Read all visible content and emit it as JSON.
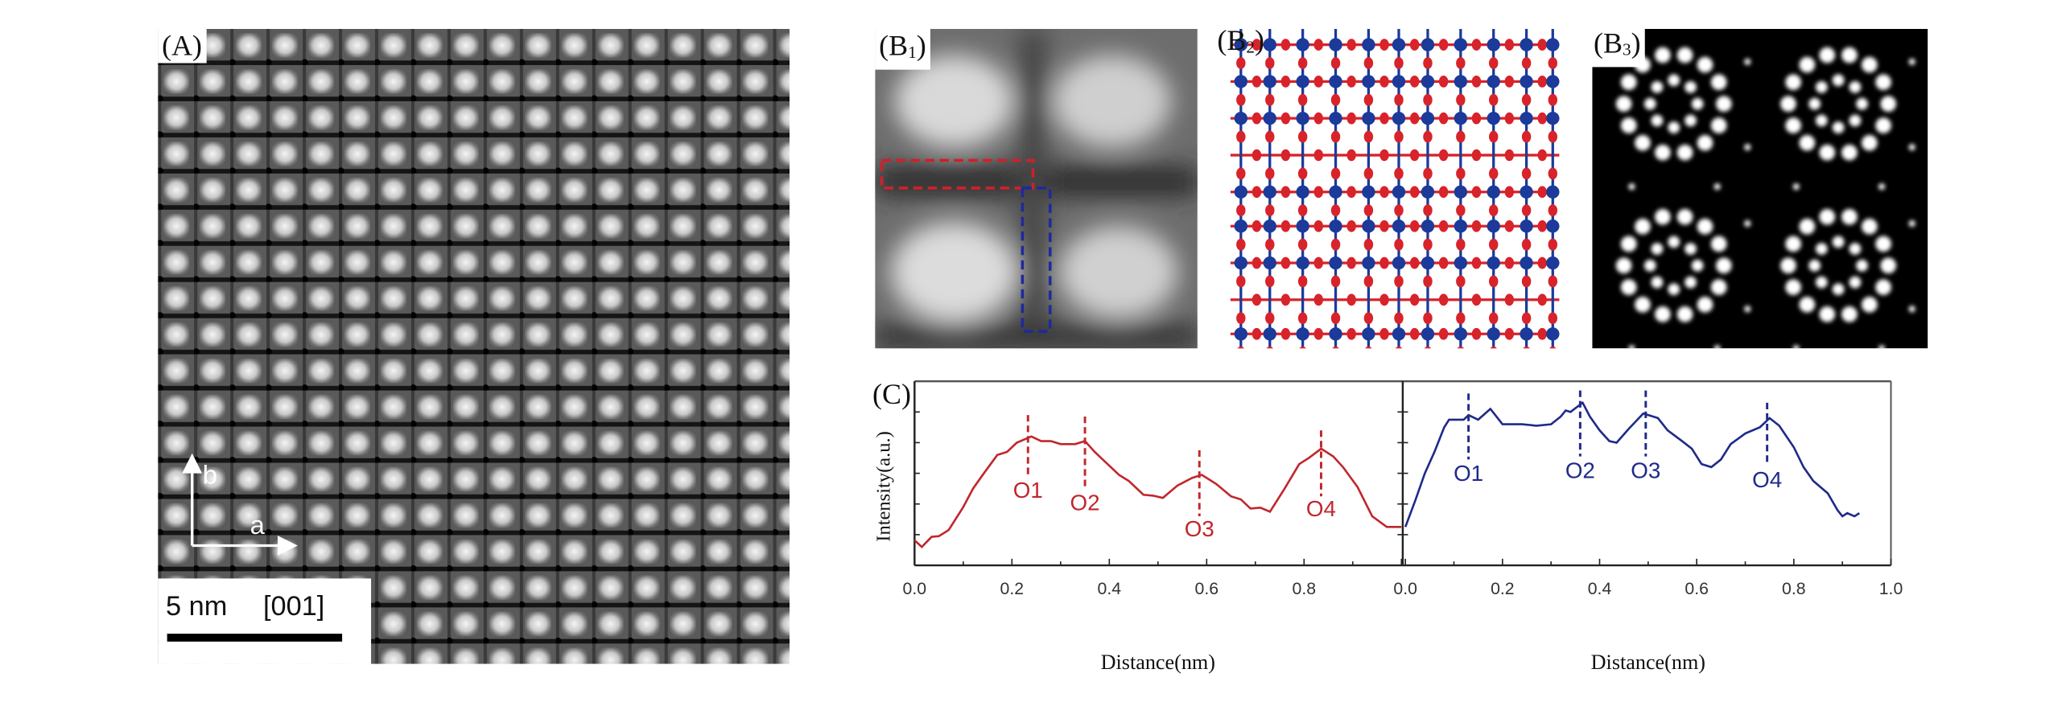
{
  "panels": {
    "A": {
      "label": "(A)",
      "scale_bar_text": "5 nm",
      "zone_axis": "[001]",
      "axis_b": "b",
      "axis_a": "a"
    },
    "B1": {
      "label_main": "B",
      "label_sub": "1"
    },
    "B2": {
      "label_main": "B",
      "label_sub": "2"
    },
    "B3": {
      "label_main": "B",
      "label_sub": "3"
    },
    "C": {
      "label": "(C)"
    }
  },
  "colors": {
    "red": "#c0272d",
    "blue": "#1f2a8a",
    "atom_red": "#d8232a",
    "atom_blue": "#1b3a9a"
  },
  "chart_data": [
    {
      "type": "line",
      "name": "red-profile",
      "xlabel": "Distance(nm)",
      "ylabel": "Intensity(a.u.)",
      "xlim": [
        0,
        1.0
      ],
      "ylim": [
        0,
        6
      ],
      "xticks": [
        "0.0",
        "0.2",
        "0.4",
        "0.6",
        "0.8"
      ],
      "color": "#c0272d",
      "x": [
        0,
        0.015,
        0.035,
        0.05,
        0.07,
        0.1,
        0.12,
        0.14,
        0.17,
        0.19,
        0.21,
        0.24,
        0.26,
        0.28,
        0.3,
        0.33,
        0.35,
        0.37,
        0.39,
        0.42,
        0.44,
        0.47,
        0.49,
        0.51,
        0.54,
        0.57,
        0.59,
        0.62,
        0.65,
        0.67,
        0.69,
        0.71,
        0.73,
        0.76,
        0.79,
        0.81,
        0.835,
        0.86,
        0.88,
        0.91,
        0.94,
        0.97,
        1.0
      ],
      "y": [
        0.82,
        0.6,
        0.93,
        0.95,
        1.15,
        1.9,
        2.5,
        2.95,
        3.6,
        3.7,
        4.0,
        4.2,
        4.05,
        4.05,
        3.95,
        3.95,
        4.05,
        3.7,
        3.4,
        2.95,
        2.75,
        2.3,
        2.27,
        2.2,
        2.6,
        2.85,
        2.95,
        2.65,
        2.25,
        2.15,
        1.85,
        1.88,
        1.75,
        2.5,
        3.3,
        3.5,
        3.8,
        3.55,
        3.2,
        2.55,
        1.6,
        1.25,
        1.25
      ],
      "annotations": [
        {
          "text": "O1",
          "x": 0.233,
          "y_top": 4.9,
          "y_bottom": 2.85,
          "label_y": 2.2
        },
        {
          "text": "O2",
          "x": 0.35,
          "y_top": 4.85,
          "y_bottom": 2.55,
          "label_y": 1.8
        },
        {
          "text": "O3",
          "x": 0.585,
          "y_top": 3.75,
          "y_bottom": 1.6,
          "label_y": 0.95
        },
        {
          "text": "O4",
          "x": 0.835,
          "y_top": 4.4,
          "y_bottom": 2.25,
          "label_y": 1.6
        }
      ]
    },
    {
      "type": "line",
      "name": "blue-profile",
      "xlabel": "Distance(nm)",
      "xlim": [
        0,
        1.0
      ],
      "ylim": [
        0,
        6
      ],
      "xticks": [
        "0.0",
        "0.2",
        "0.4",
        "0.6",
        "0.8",
        "1.0"
      ],
      "color": "#1f2a8a",
      "x": [
        0,
        0.02,
        0.04,
        0.06,
        0.08,
        0.09,
        0.12,
        0.13,
        0.15,
        0.175,
        0.2,
        0.24,
        0.27,
        0.3,
        0.32,
        0.33,
        0.34,
        0.365,
        0.38,
        0.4,
        0.42,
        0.435,
        0.46,
        0.49,
        0.52,
        0.54,
        0.57,
        0.59,
        0.61,
        0.63,
        0.65,
        0.67,
        0.7,
        0.73,
        0.75,
        0.77,
        0.8,
        0.82,
        0.84,
        0.87,
        0.89,
        0.9,
        0.91,
        0.925,
        0.935
      ],
      "y": [
        1.25,
        2.1,
        3.0,
        3.7,
        4.5,
        4.75,
        4.75,
        4.9,
        4.75,
        5.1,
        4.6,
        4.6,
        4.55,
        4.6,
        4.85,
        5.05,
        5.0,
        5.3,
        4.85,
        4.4,
        4.05,
        4.0,
        4.45,
        4.95,
        4.8,
        4.4,
        4.05,
        3.8,
        3.3,
        3.2,
        3.45,
        3.95,
        4.3,
        4.5,
        4.8,
        4.55,
        3.85,
        3.2,
        2.75,
        2.35,
        1.8,
        1.6,
        1.7,
        1.6,
        1.7
      ],
      "annotations": [
        {
          "text": "O1",
          "x": 0.13,
          "y_top": 5.6,
          "y_bottom": 3.45,
          "label_y": 2.75
        },
        {
          "text": "O2",
          "x": 0.36,
          "y_top": 5.7,
          "y_bottom": 3.55,
          "label_y": 2.85
        },
        {
          "text": "O3",
          "x": 0.495,
          "y_top": 5.7,
          "y_bottom": 3.55,
          "label_y": 2.85
        },
        {
          "text": "O4",
          "x": 0.745,
          "y_top": 5.3,
          "y_bottom": 3.25,
          "label_y": 2.55
        }
      ]
    }
  ]
}
